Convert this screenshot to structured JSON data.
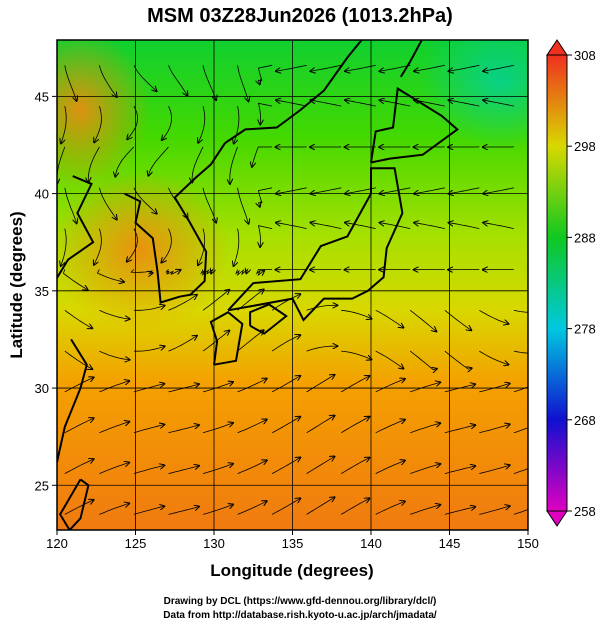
{
  "chart_data": {
    "type": "map",
    "title": "MSM 03Z28Jun2026 (1013.2hPa)",
    "xlabel": "Longitude (degrees)",
    "ylabel": "Latitude  (degrees)",
    "xlim": [
      120,
      150
    ],
    "xticks": [
      120,
      125,
      130,
      135,
      140,
      145,
      150
    ],
    "ylim": [
      22.7,
      47.9
    ],
    "yticks": [
      25,
      30,
      35,
      40,
      45
    ],
    "grid": true,
    "colorbar": {
      "lim": [
        258,
        308
      ],
      "ticks": [
        258,
        268,
        278,
        288,
        298,
        308
      ]
    },
    "credits": [
      "Drawing by DCL (https://www.gfd-dennou.org/library/dcl/)",
      "Data from http://database.rish.kyoto-u.ac.jp/arch/jmadata/"
    ]
  }
}
